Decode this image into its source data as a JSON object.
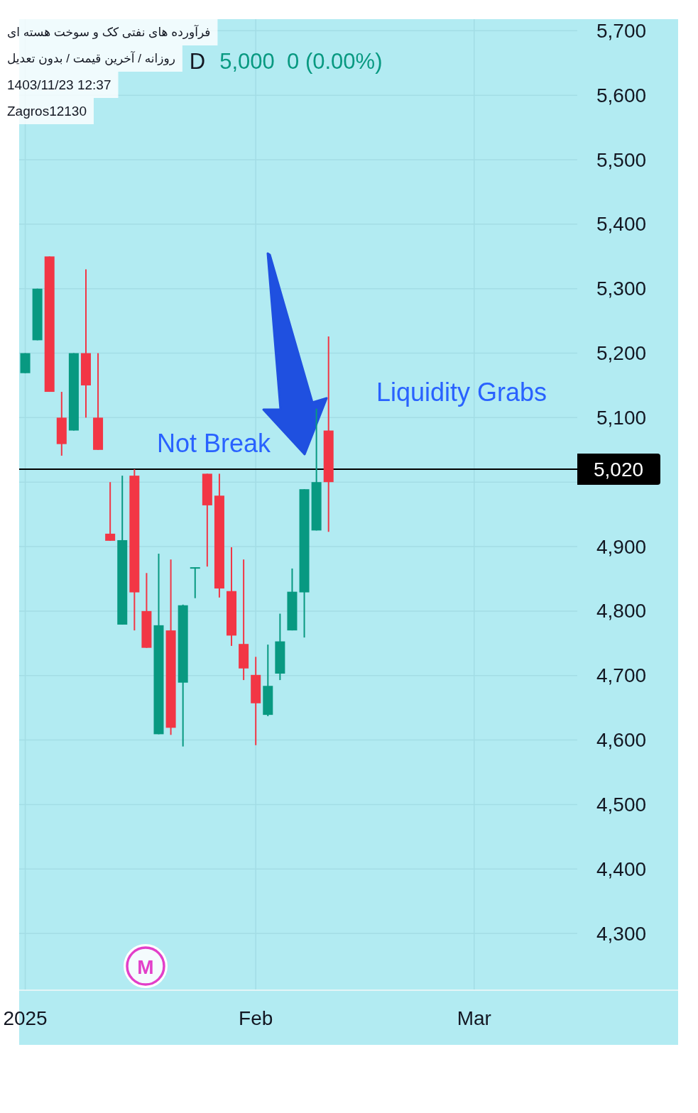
{
  "chart_data": {
    "type": "candlestick",
    "title": "فرآورده های نفتی کک و سوخت هسته ای",
    "subtitle": "روزانه / آخرین قیمت / بدون تعدیل",
    "categories": [
      "2025",
      null,
      null,
      null,
      null,
      null,
      null,
      null,
      null,
      null,
      null,
      null,
      null,
      null,
      null,
      null,
      null,
      null,
      null,
      "Feb",
      null,
      null,
      null,
      null,
      null,
      null,
      null,
      null,
      null,
      null,
      null,
      null,
      null,
      null,
      null,
      null,
      null,
      "Mar",
      null,
      null,
      null,
      null,
      null,
      null,
      null,
      null
    ],
    "ohlc": [
      [
        5169,
        5200,
        5169,
        5200
      ],
      [
        5220,
        5300,
        5220,
        5300
      ],
      [
        5350,
        5350,
        5140,
        5140
      ],
      [
        5100,
        5140,
        5041,
        5059
      ],
      [
        5080,
        5200,
        5080,
        5200
      ],
      [
        5200,
        5330,
        5100,
        5150
      ],
      [
        5100,
        5200,
        5050,
        5050
      ],
      [
        4920,
        5000,
        4909,
        4909
      ],
      [
        4779,
        5010,
        4779,
        4910
      ],
      [
        5010,
        5020,
        4770,
        4829
      ],
      [
        4800,
        4859,
        4743,
        4743
      ],
      [
        4609,
        4889,
        4609,
        4778
      ],
      [
        4770,
        4880,
        4608,
        4619
      ],
      [
        4689,
        4810,
        4590,
        4809
      ],
      [
        4868,
        4868,
        4820,
        4868
      ],
      [
        5013,
        5013,
        4869,
        4964
      ],
      [
        4979,
        5013,
        4821,
        4835
      ],
      [
        4831,
        4899,
        4746,
        4762
      ],
      [
        4749,
        4880,
        4693,
        4711
      ],
      [
        4701,
        4729,
        4592,
        4657
      ],
      [
        4639,
        4748,
        4637,
        4684
      ],
      [
        4703,
        4796,
        4693,
        4753
      ],
      [
        4770,
        4866,
        4770,
        4830
      ],
      [
        4829,
        4989,
        4759,
        4989
      ],
      [
        4925,
        5114,
        4925,
        5000
      ],
      [
        5080,
        5226,
        4923,
        5000
      ],
      null,
      null,
      null,
      null,
      null,
      null,
      null,
      null,
      null,
      null,
      null,
      null,
      null,
      null,
      null,
      null,
      null,
      null,
      null,
      null
    ],
    "colors": [
      "#089981",
      "#089981",
      "#f23645",
      "#f23645",
      "#089981",
      "#f23645",
      "#f23645",
      "#f23645",
      "#089981",
      "#f23645",
      "#f23645",
      "#089981",
      "#f23645",
      "#089981",
      "#089981",
      "#f23645",
      "#f23645",
      "#f23645",
      "#f23645",
      "#f23645",
      "#089981",
      "#089981",
      "#089981",
      "#089981",
      "#089981",
      "#f23645",
      null,
      null,
      null,
      null,
      null,
      null,
      null,
      null,
      null,
      null,
      null,
      null,
      null,
      null,
      null,
      null,
      null,
      null,
      null,
      null
    ],
    "ylim": [
      4212,
      5718
    ],
    "yticks": [
      {
        "value": 4300,
        "label": "4,300"
      },
      {
        "value": 4400,
        "label": "4,400"
      },
      {
        "value": 4500,
        "label": "4,500"
      },
      {
        "value": 4600,
        "label": "4,600"
      },
      {
        "value": 4700,
        "label": "4,700"
      },
      {
        "value": 4800,
        "label": "4,800"
      },
      {
        "value": 4900,
        "label": "4,900"
      },
      {
        "value": 5000,
        "label": null
      },
      {
        "value": 5100,
        "label": "5,100"
      },
      {
        "value": 5200,
        "label": "5,200"
      },
      {
        "value": 5300,
        "label": "5,300"
      },
      {
        "value": 5400,
        "label": "5,400"
      },
      {
        "value": 5500,
        "label": "5,500"
      },
      {
        "value": 5600,
        "label": "5,600"
      },
      {
        "value": 5700,
        "label": "5,700"
      }
    ],
    "grid": true,
    "ref_lines": [
      {
        "axis": "y",
        "value": 5020,
        "label": "5,020",
        "color": "#000000"
      }
    ],
    "annotations": [
      "1403/11/23 12:37",
      "Zagros12130",
      "D",
      "5,000  0 (0.00%)",
      "Not Break",
      "Liquidity Grabs",
      "M"
    ]
  }
}
